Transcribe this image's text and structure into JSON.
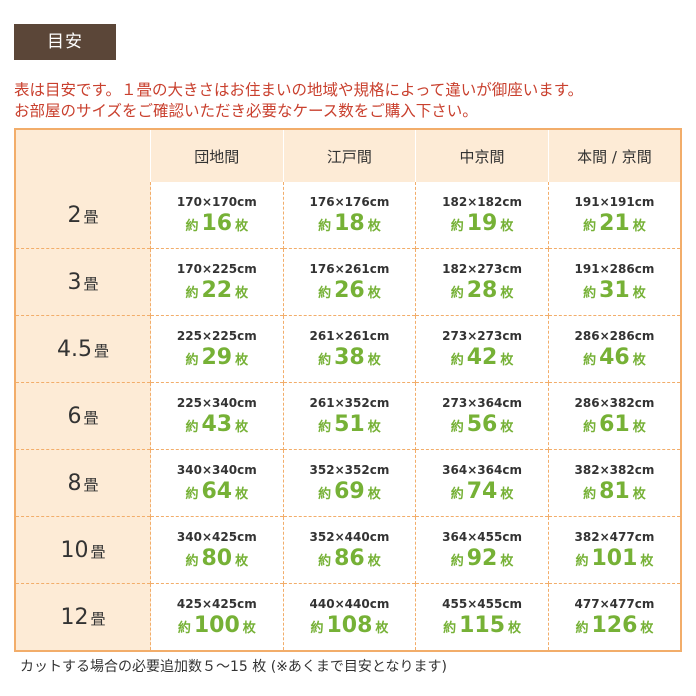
{
  "header": {
    "tag": "目安",
    "notes": [
      "表は目安です。１畳の大きさはお住まいの地域や規格によって違いが御座います。",
      "お部屋のサイズをご確認いただき必要なケース数をご購入下さい。"
    ]
  },
  "table": {
    "columns": [
      "団地間",
      "江戸間",
      "中京間",
      "本間 / 京間"
    ],
    "unit": "畳",
    "count_prefix": "約",
    "count_suffix": "枚",
    "rows": [
      {
        "label": "2",
        "cells": [
          {
            "size": "170×170cm",
            "count": "16"
          },
          {
            "size": "176×176cm",
            "count": "18"
          },
          {
            "size": "182×182cm",
            "count": "19"
          },
          {
            "size": "191×191cm",
            "count": "21"
          }
        ]
      },
      {
        "label": "3",
        "cells": [
          {
            "size": "170×225cm",
            "count": "22"
          },
          {
            "size": "176×261cm",
            "count": "26"
          },
          {
            "size": "182×273cm",
            "count": "28"
          },
          {
            "size": "191×286cm",
            "count": "31"
          }
        ]
      },
      {
        "label": "4.5",
        "cells": [
          {
            "size": "225×225cm",
            "count": "29"
          },
          {
            "size": "261×261cm",
            "count": "38"
          },
          {
            "size": "273×273cm",
            "count": "42"
          },
          {
            "size": "286×286cm",
            "count": "46"
          }
        ]
      },
      {
        "label": "6",
        "cells": [
          {
            "size": "225×340cm",
            "count": "43"
          },
          {
            "size": "261×352cm",
            "count": "51"
          },
          {
            "size": "273×364cm",
            "count": "56"
          },
          {
            "size": "286×382cm",
            "count": "61"
          }
        ]
      },
      {
        "label": "8",
        "cells": [
          {
            "size": "340×340cm",
            "count": "64"
          },
          {
            "size": "352×352cm",
            "count": "69"
          },
          {
            "size": "364×364cm",
            "count": "74"
          },
          {
            "size": "382×382cm",
            "count": "81"
          }
        ]
      },
      {
        "label": "10",
        "cells": [
          {
            "size": "340×425cm",
            "count": "80"
          },
          {
            "size": "352×440cm",
            "count": "86"
          },
          {
            "size": "364×455cm",
            "count": "92"
          },
          {
            "size": "382×477cm",
            "count": "101"
          }
        ]
      },
      {
        "label": "12",
        "cells": [
          {
            "size": "425×425cm",
            "count": "100"
          },
          {
            "size": "440×440cm",
            "count": "108"
          },
          {
            "size": "455×455cm",
            "count": "115"
          },
          {
            "size": "477×477cm",
            "count": "126"
          }
        ]
      }
    ]
  },
  "footer": "カットする場合の必要追加数５～15 枚 (※あくまで目安となります)"
}
